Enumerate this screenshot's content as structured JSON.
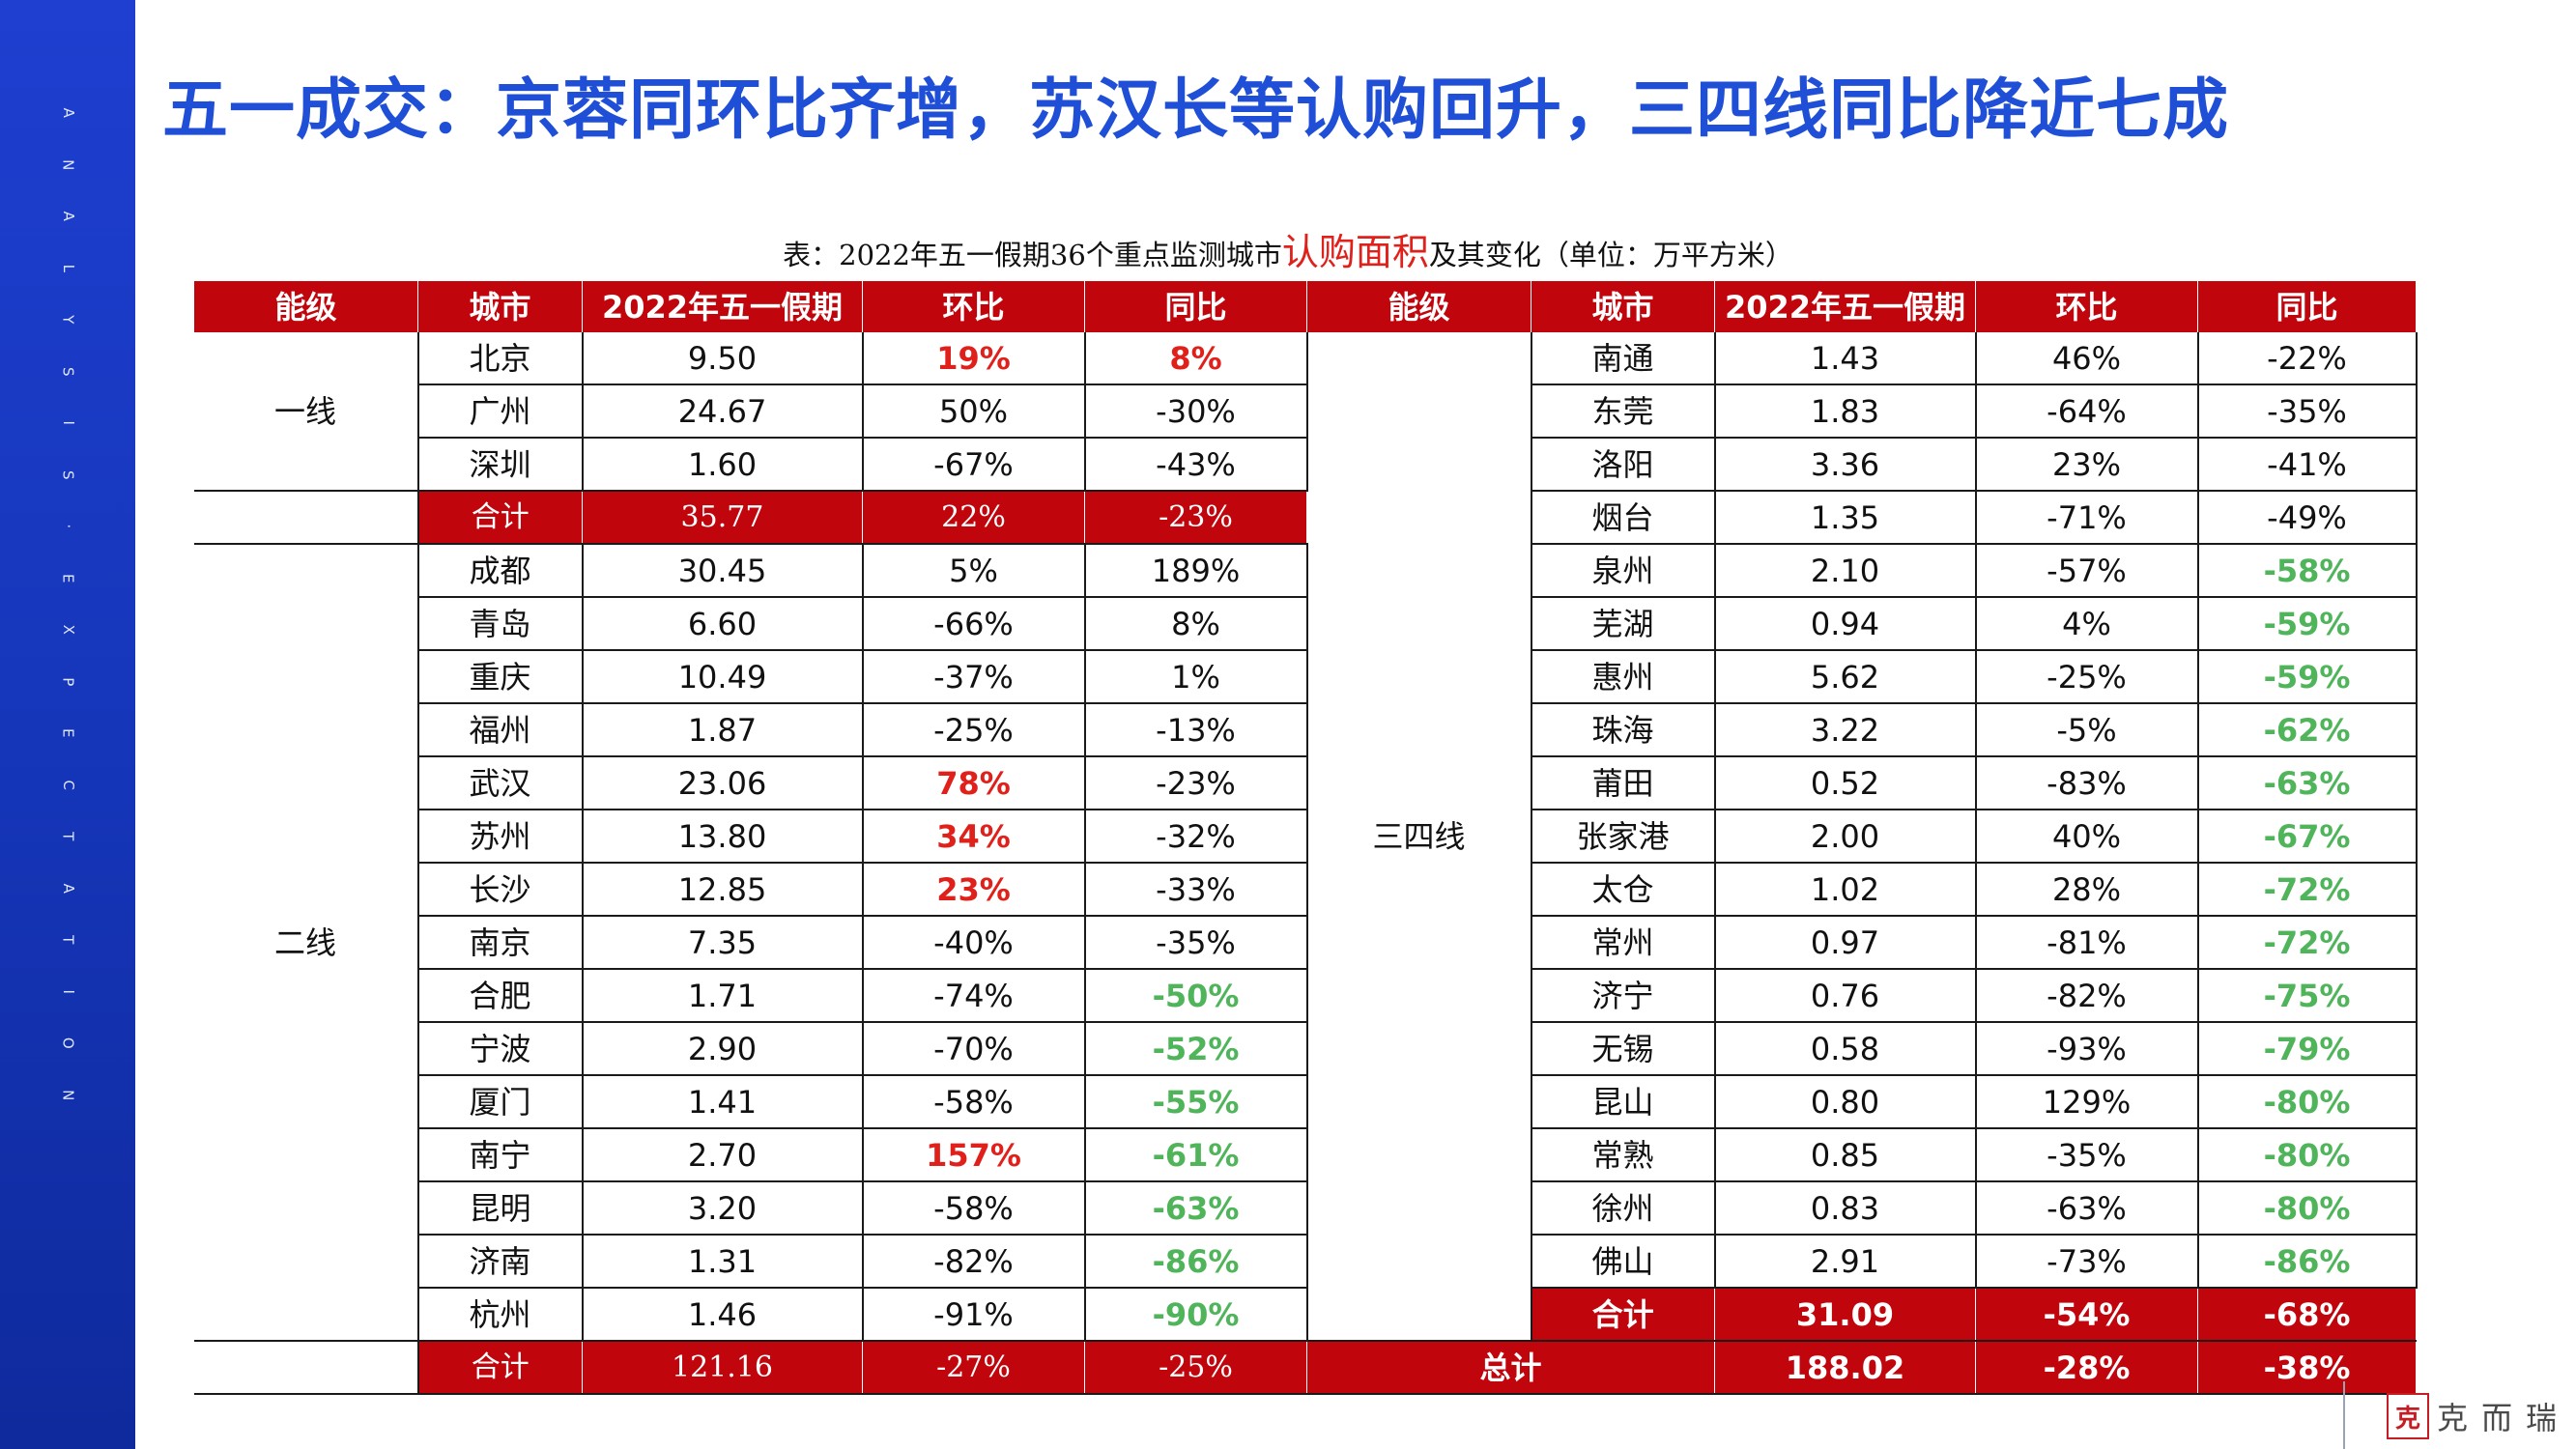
{
  "sidebar": {
    "letters": [
      "A",
      "N",
      "A",
      "L",
      "Y",
      "S",
      "I",
      "S",
      "·",
      "E",
      "X",
      "P",
      "E",
      "C",
      "T",
      "A",
      "T",
      "I",
      "O",
      "N"
    ]
  },
  "title": "五一成交：京蓉同环比齐增，苏汉长等认购回升，三四线同比降近七成",
  "caption": {
    "prefix": "表：2022年五一假期36个重点监测城市",
    "highlight": "认购面积",
    "suffix": "及其变化（单位：万平方米）"
  },
  "headers": [
    "能级",
    "城市",
    "2022年五一假期",
    "环比",
    "同比",
    "能级",
    "城市",
    "2022年五一假期",
    "环比",
    "同比"
  ],
  "left_groups": [
    {
      "tier": "一线",
      "rows": [
        {
          "city": "北京",
          "value": "9.50",
          "hb": "19%",
          "tb": "8%",
          "hb_style": "red",
          "tb_style": "red"
        },
        {
          "city": "广州",
          "value": "24.67",
          "hb": "50%",
          "tb": "-30%",
          "hb_style": "",
          "tb_style": ""
        },
        {
          "city": "深圳",
          "value": "1.60",
          "hb": "-67%",
          "tb": "-43%",
          "hb_style": "",
          "tb_style": ""
        }
      ],
      "subtotal": {
        "label": "合计",
        "value": "35.77",
        "hb": "22%",
        "tb": "-23%"
      }
    },
    {
      "tier": "二线",
      "rows": [
        {
          "city": "成都",
          "value": "30.45",
          "hb": "5%",
          "tb": "189%",
          "hb_style": "",
          "tb_style": ""
        },
        {
          "city": "青岛",
          "value": "6.60",
          "hb": "-66%",
          "tb": "8%",
          "hb_style": "",
          "tb_style": ""
        },
        {
          "city": "重庆",
          "value": "10.49",
          "hb": "-37%",
          "tb": "1%",
          "hb_style": "",
          "tb_style": ""
        },
        {
          "city": "福州",
          "value": "1.87",
          "hb": "-25%",
          "tb": "-13%",
          "hb_style": "",
          "tb_style": ""
        },
        {
          "city": "武汉",
          "value": "23.06",
          "hb": "78%",
          "tb": "-23%",
          "hb_style": "red",
          "tb_style": ""
        },
        {
          "city": "苏州",
          "value": "13.80",
          "hb": "34%",
          "tb": "-32%",
          "hb_style": "red",
          "tb_style": ""
        },
        {
          "city": "长沙",
          "value": "12.85",
          "hb": "23%",
          "tb": "-33%",
          "hb_style": "red",
          "tb_style": ""
        },
        {
          "city": "南京",
          "value": "7.35",
          "hb": "-40%",
          "tb": "-35%",
          "hb_style": "",
          "tb_style": ""
        },
        {
          "city": "合肥",
          "value": "1.71",
          "hb": "-74%",
          "tb": "-50%",
          "hb_style": "",
          "tb_style": "green"
        },
        {
          "city": "宁波",
          "value": "2.90",
          "hb": "-70%",
          "tb": "-52%",
          "hb_style": "",
          "tb_style": "green"
        },
        {
          "city": "厦门",
          "value": "1.41",
          "hb": "-58%",
          "tb": "-55%",
          "hb_style": "",
          "tb_style": "green"
        },
        {
          "city": "南宁",
          "value": "2.70",
          "hb": "157%",
          "tb": "-61%",
          "hb_style": "red",
          "tb_style": "green"
        },
        {
          "city": "昆明",
          "value": "3.20",
          "hb": "-58%",
          "tb": "-63%",
          "hb_style": "",
          "tb_style": "green"
        },
        {
          "city": "济南",
          "value": "1.31",
          "hb": "-82%",
          "tb": "-86%",
          "hb_style": "",
          "tb_style": "green"
        },
        {
          "city": "杭州",
          "value": "1.46",
          "hb": "-91%",
          "tb": "-90%",
          "hb_style": "",
          "tb_style": "green"
        }
      ],
      "subtotal": {
        "label": "合计",
        "value": "121.16",
        "hb": "-27%",
        "tb": "-25%"
      }
    }
  ],
  "right_group": {
    "tier": "三四线",
    "rows": [
      {
        "city": "南通",
        "value": "1.43",
        "hb": "46%",
        "tb": "-22%",
        "tb_style": ""
      },
      {
        "city": "东莞",
        "value": "1.83",
        "hb": "-64%",
        "tb": "-35%",
        "tb_style": ""
      },
      {
        "city": "洛阳",
        "value": "3.36",
        "hb": "23%",
        "tb": "-41%",
        "tb_style": ""
      },
      {
        "city": "烟台",
        "value": "1.35",
        "hb": "-71%",
        "tb": "-49%",
        "tb_style": ""
      },
      {
        "city": "泉州",
        "value": "2.10",
        "hb": "-57%",
        "tb": "-58%",
        "tb_style": "green"
      },
      {
        "city": "芜湖",
        "value": "0.94",
        "hb": "4%",
        "tb": "-59%",
        "tb_style": "green"
      },
      {
        "city": "惠州",
        "value": "5.62",
        "hb": "-25%",
        "tb": "-59%",
        "tb_style": "green"
      },
      {
        "city": "珠海",
        "value": "3.22",
        "hb": "-5%",
        "tb": "-62%",
        "tb_style": "green"
      },
      {
        "city": "莆田",
        "value": "0.52",
        "hb": "-83%",
        "tb": "-63%",
        "tb_style": "green"
      },
      {
        "city": "张家港",
        "value": "2.00",
        "hb": "40%",
        "tb": "-67%",
        "tb_style": "green"
      },
      {
        "city": "太仓",
        "value": "1.02",
        "hb": "28%",
        "tb": "-72%",
        "tb_style": "green"
      },
      {
        "city": "常州",
        "value": "0.97",
        "hb": "-81%",
        "tb": "-72%",
        "tb_style": "green"
      },
      {
        "city": "济宁",
        "value": "0.76",
        "hb": "-82%",
        "tb": "-75%",
        "tb_style": "green"
      },
      {
        "city": "无锡",
        "value": "0.58",
        "hb": "-93%",
        "tb": "-79%",
        "tb_style": "green"
      },
      {
        "city": "昆山",
        "value": "0.80",
        "hb": "129%",
        "tb": "-80%",
        "tb_style": "green"
      },
      {
        "city": "常熟",
        "value": "0.85",
        "hb": "-35%",
        "tb": "-80%",
        "tb_style": "green"
      },
      {
        "city": "徐州",
        "value": "0.83",
        "hb": "-63%",
        "tb": "-80%",
        "tb_style": "green"
      },
      {
        "city": "佛山",
        "value": "2.91",
        "hb": "-73%",
        "tb": "-86%",
        "tb_style": "green"
      }
    ],
    "subtotal": {
      "label": "合计",
      "value": "31.09",
      "hb": "-54%",
      "tb": "-68%"
    }
  },
  "total": {
    "label": "总计",
    "value": "188.02",
    "hb": "-28%",
    "tb": "-38%"
  },
  "logo": {
    "mark": "克",
    "text": "克而瑞"
  },
  "colors": {
    "header_red": "#c0050c",
    "title_blue": "#1f4fd6",
    "highlight_red": "#e0201b",
    "decline_green": "#4fb45a",
    "sidebar_blue": "#1535b8"
  }
}
